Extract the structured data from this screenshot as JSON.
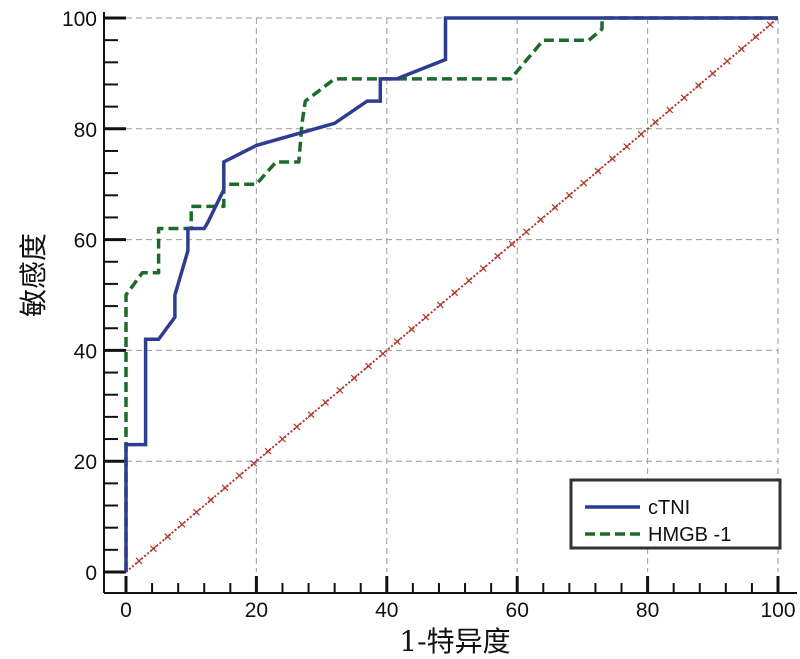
{
  "chart_data": {
    "type": "line",
    "xlabel": "1-特异度",
    "ylabel": "敏感度",
    "xlim": [
      0,
      100
    ],
    "ylim": [
      0,
      100
    ],
    "xticks": [
      "0",
      "20",
      "40",
      "60",
      "80",
      "100"
    ],
    "yticks": [
      "0",
      "20",
      "40",
      "60",
      "80",
      "100"
    ],
    "grid": true,
    "legend_position": "bottom-right",
    "series": [
      {
        "name": "cTNI",
        "style": "solid",
        "color": "#2e3d8f",
        "x": [
          0,
          0,
          3,
          3,
          5,
          7.5,
          7.5,
          9.5,
          9.5,
          12,
          12.5,
          15,
          15,
          20,
          32,
          37,
          39,
          39,
          41.5,
          49,
          49,
          100
        ],
        "y": [
          0,
          23,
          23,
          42,
          42,
          46,
          50,
          58,
          62,
          62,
          63,
          69,
          74,
          77,
          81,
          85,
          85,
          89,
          89,
          92.5,
          100,
          100
        ]
      },
      {
        "name": "HMGB -1",
        "style": "dashed",
        "color": "#1d6b2a",
        "x": [
          0,
          0,
          2.5,
          2.5,
          5,
          5,
          10,
          10,
          15,
          15,
          20,
          20,
          23,
          26.5,
          27,
          27.5,
          32,
          59,
          64,
          71,
          73,
          73,
          100
        ],
        "y": [
          0,
          50,
          54,
          54,
          54,
          62,
          62,
          66,
          66,
          70,
          70,
          70,
          74,
          74,
          81,
          85,
          89,
          89,
          96,
          96,
          98,
          100,
          100
        ]
      },
      {
        "name": "",
        "style": "dotted-reference",
        "color": "#b0392b",
        "x": [
          0,
          100
        ],
        "y": [
          0,
          100
        ]
      }
    ]
  }
}
